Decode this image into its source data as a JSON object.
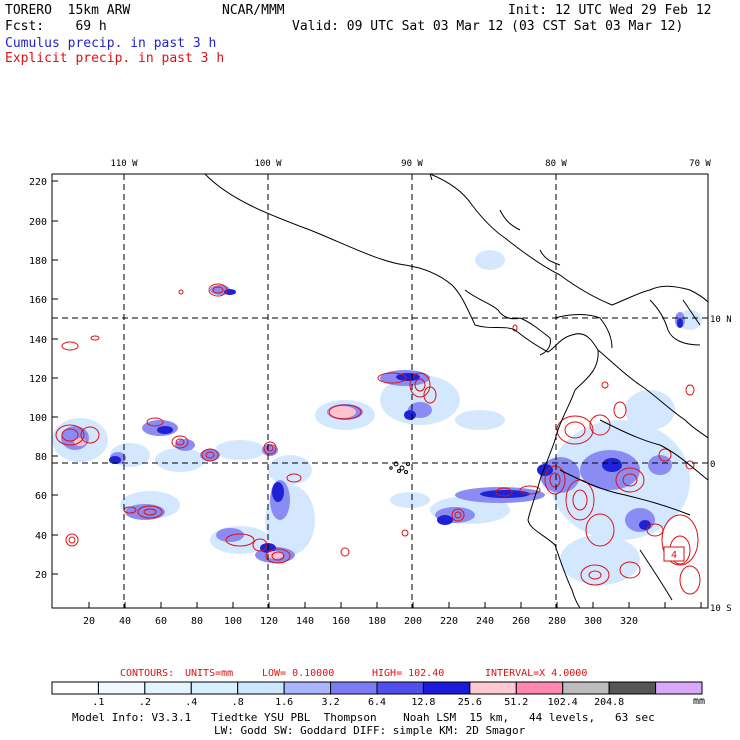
{
  "header": {
    "model": "TORERO  15km ARW",
    "org": "NCAR/MMM",
    "init": "Init: 12 UTC Wed 29 Feb 12",
    "fcst": "Fcst:    69 h",
    "valid": "Valid: 09 UTC Sat 03 Mar 12 (03 CST Sat 03 Mar 12)",
    "cumulus": "Cumulus precip. in past 3 h",
    "explicit": "Explicit precip. in past 3 h"
  },
  "map": {
    "top_lon_labels": [
      "110 W",
      "100 W",
      "90 W",
      "80 W",
      "70 W"
    ],
    "right_lat_labels": [
      "10 N",
      "0",
      "10 S"
    ],
    "y_ticks": [
      "220",
      "200",
      "180",
      "160",
      "140",
      "120",
      "100",
      "80",
      "60",
      "40",
      "20"
    ],
    "x_ticks": [
      "20",
      "40",
      "60",
      "80",
      "100",
      "120",
      "140",
      "160",
      "180",
      "200",
      "220",
      "240",
      "260",
      "280",
      "300",
      "320"
    ],
    "box_label": "4"
  },
  "contours_line": {
    "contours": "CONTOURS:",
    "units": "UNITS=mm",
    "low": "LOW= 0.10000",
    "high": "HIGH=  102.40",
    "interval": "INTERVAL=X  4.0000"
  },
  "colorbar": {
    "labels": [
      ".1",
      ".2",
      ".4",
      ".8",
      "1.6",
      "3.2",
      "6.4",
      "12.8",
      "25.6",
      "51.2",
      "102.4",
      "204.8"
    ],
    "unit": "mm",
    "colors": [
      "#ffffff",
      "#f2f8ff",
      "#e4f4ff",
      "#d8f0ff",
      "#cce6ff",
      "#aab6ff",
      "#7c7cf4",
      "#5050ee",
      "#1a1ad8",
      "#ffc8d2",
      "#ff88b0",
      "#bdbdbd",
      "#555555",
      "#d8a8ff"
    ]
  },
  "footer": {
    "line1": "Model Info: V3.3.1   Tiedtke YSU PBL  Thompson    Noah LSM  15 km,   44 levels,   63 sec",
    "line2": "LW: Godd SW: Goddard DIFF: simple KM: 2D Smagor"
  }
}
